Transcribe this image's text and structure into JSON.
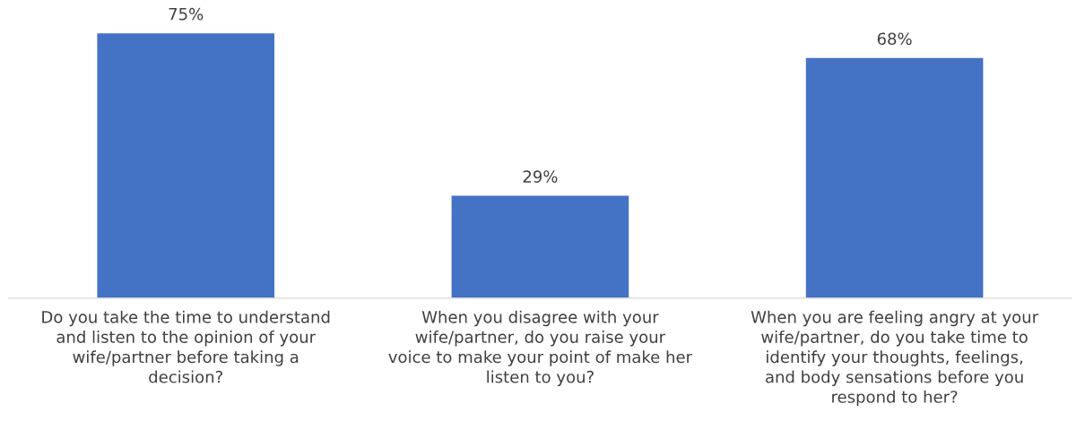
{
  "chart_data": {
    "type": "bar",
    "categories": [
      "Do you take the time to understand and listen to the opinion of your wife/partner before taking a decision?",
      "When you disagree with your wife/partner, do you raise your voice to make your point of make her listen to you?",
      "When you are feeling angry at your wife/partner, do you take time to identify your thoughts, feelings, and body sensations before you respond to her?"
    ],
    "values": [
      75,
      29,
      68
    ],
    "value_labels": [
      "75%",
      "29%",
      "68%"
    ],
    "color": "#4472c4",
    "tick_labels": "x",
    "grid": false,
    "legend": false
  }
}
